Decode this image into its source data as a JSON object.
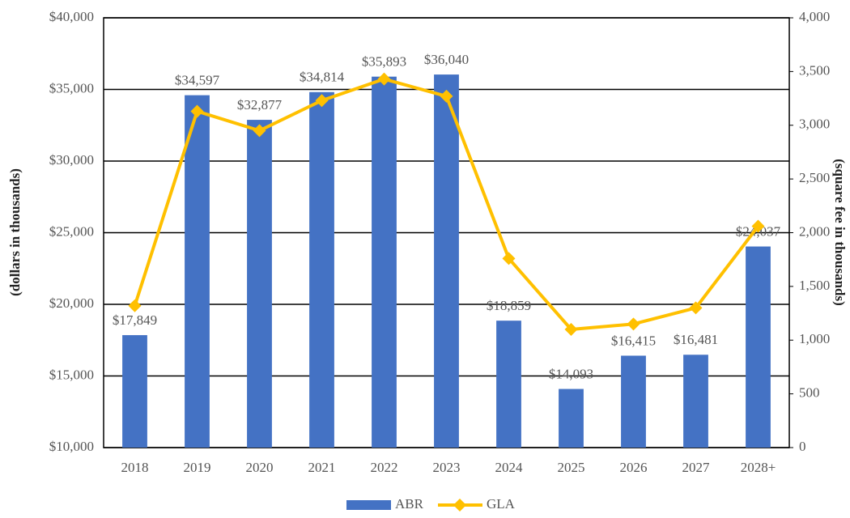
{
  "chart_data": {
    "type": "bar",
    "y_label": "(dollars in thousands)",
    "y2_label": "(square fee in thousands)",
    "categories": [
      "2018",
      "2019",
      "2020",
      "2021",
      "2022",
      "2023",
      "2024",
      "2025",
      "2026",
      "2027",
      "2028+"
    ],
    "series": [
      {
        "name": "ABR",
        "type": "bar",
        "color": "#4472c4",
        "values": [
          17849,
          34597,
          32877,
          34814,
          35893,
          36040,
          18859,
          14093,
          16415,
          16481,
          24037
        ],
        "value_labels": [
          "$17,849",
          "$34,597",
          "$32,877",
          "$34,814",
          "$35,893",
          "$36,040",
          "$18,859",
          "$14,093",
          "$16,415",
          "$16,481",
          "$24,037"
        ]
      },
      {
        "name": "GLA",
        "type": "line",
        "axis": "y2",
        "color": "#ffc000",
        "values": [
          1320,
          3130,
          2950,
          3230,
          3430,
          3270,
          1760,
          1100,
          1150,
          1300,
          2060
        ]
      }
    ],
    "ylim": [
      10000,
      40000
    ],
    "yticks": [
      {
        "value": 10000,
        "label": "$10,000"
      },
      {
        "value": 15000,
        "label": "$15,000"
      },
      {
        "value": 20000,
        "label": "$20,000"
      },
      {
        "value": 25000,
        "label": "$25,000"
      },
      {
        "value": 30000,
        "label": "$30,000"
      },
      {
        "value": 35000,
        "label": "$35,000"
      },
      {
        "value": 40000,
        "label": "$40,000"
      }
    ],
    "y2lim": [
      0,
      4000
    ],
    "y2ticks": [
      0,
      500,
      {
        "value": 1000,
        "label": "1,000"
      },
      {
        "value": 1500,
        "label": "1,500"
      },
      {
        "value": 2000,
        "label": "2,000"
      },
      {
        "value": 2500,
        "label": "2,500"
      },
      {
        "value": 3000,
        "label": "3,000"
      },
      {
        "value": 3500,
        "label": "3,500"
      },
      {
        "value": 4000,
        "label": "4,000"
      }
    ],
    "grid": true,
    "legend": "bottom"
  }
}
